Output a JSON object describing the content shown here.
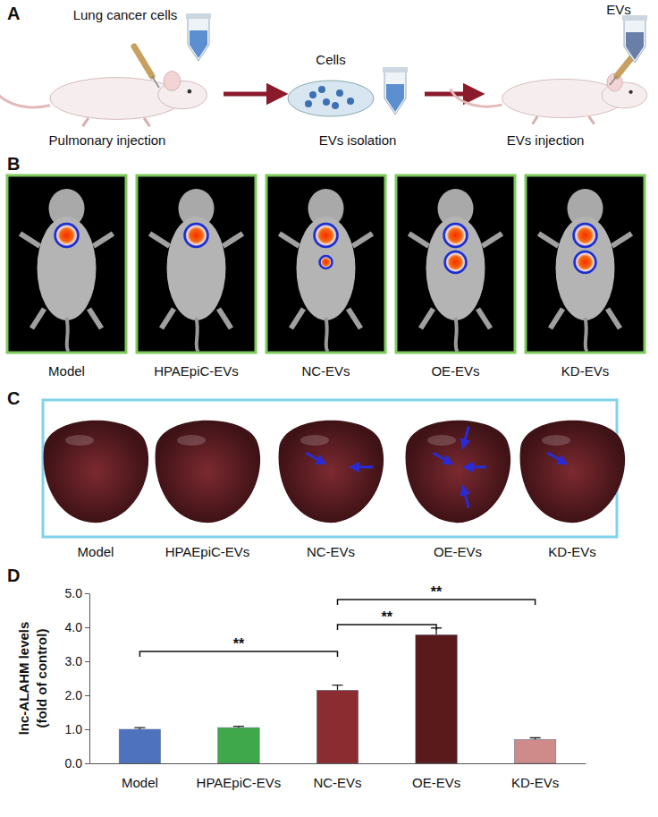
{
  "panels": {
    "A": {
      "label": "A",
      "texts": {
        "cells_label": "Lung cancer cells",
        "step1": "Pulmonary injection",
        "dish_label": "Cells",
        "step2": "EVs isolation",
        "tube_label": "EVs",
        "step3": "EVs injection"
      }
    },
    "B": {
      "label": "B",
      "groups": [
        "Model",
        "HPAEpiC-EVs",
        "NC-EVs",
        "OE-EVs",
        "KD-EVs"
      ],
      "signals": [
        1,
        1,
        2,
        2,
        2
      ]
    },
    "C": {
      "label": "C",
      "groups": [
        "Model",
        "HPAEpiC-EVs",
        "NC-EVs",
        "OE-EVs",
        "KD-EVs"
      ],
      "arrows": [
        0,
        0,
        2,
        4,
        1
      ]
    },
    "D": {
      "label": "D"
    }
  },
  "chart_data": {
    "type": "bar",
    "ylabel": [
      "lnc-ALAHM levels",
      "(fold of control)"
    ],
    "categories": [
      "Model",
      "HPAEpiC-EVs",
      "NC-EVs",
      "OE-EVs",
      "KD-EVs"
    ],
    "values": [
      1.0,
      1.05,
      2.15,
      3.78,
      0.7
    ],
    "errors": [
      0.05,
      0.04,
      0.15,
      0.2,
      0.05
    ],
    "colors": [
      "#4f72be",
      "#3ea84a",
      "#8a2c30",
      "#5a1a1c",
      "#cf8a8a"
    ],
    "ylim": [
      0,
      5
    ],
    "yticks": [
      {
        "value": 0,
        "label": "0.0"
      },
      {
        "value": 1,
        "label": "1.0"
      },
      {
        "value": 2,
        "label": "2.0"
      },
      {
        "value": 3,
        "label": "3.0"
      },
      {
        "value": 4,
        "label": "4.0"
      },
      {
        "value": 5,
        "label": "5.0"
      }
    ],
    "annotations": [
      {
        "from": 0,
        "to": 2,
        "text": "**"
      },
      {
        "from": 2,
        "to": 3,
        "text": "**"
      },
      {
        "from": 2,
        "to": 4,
        "text": "**"
      }
    ],
    "grid": false
  }
}
